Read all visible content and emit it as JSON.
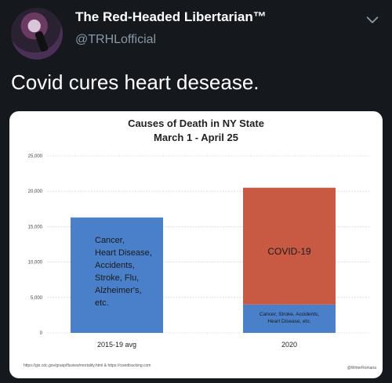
{
  "tweet": {
    "display_name": "The Red-Headed Libertarian™",
    "handle": "@TRHLofficial",
    "text": "Covid cures heart desease.",
    "menu_icon": "chevron-down-icon"
  },
  "chart_data": {
    "type": "bar",
    "title": "Causes of Death in NY State",
    "subtitle": "March 1 - April 25",
    "categories": [
      "2015-19 avg",
      "2020"
    ],
    "series": [
      {
        "name": "Cancer, Stroke, Accidents, Heart Disease, etc.",
        "values": [
          16300,
          4000
        ],
        "color": "#4a80c9"
      },
      {
        "name": "COVID-19",
        "values": [
          0,
          16500
        ],
        "color": "#c85a44"
      }
    ],
    "ylim": [
      0,
      25000
    ],
    "yticks": [
      "0",
      "5,000",
      "10,000",
      "15,000",
      "20,000",
      "25,000"
    ],
    "ytick_values": [
      0,
      5000,
      10000,
      15000,
      20000,
      25000
    ],
    "bar_text": {
      "avg_lines": [
        "Cancer,",
        "Heart Disease,",
        "Accidents,",
        "Stroke, Flu,",
        "Alzheimer's,",
        "etc."
      ],
      "covid": "COVID-19",
      "other_2020_lines": [
        "Cancer, Stroke, Accidents,",
        "Heart Disease, etc."
      ]
    },
    "grid": true,
    "source": "https://gis.cdc.gov/grasp/fluview/mortality.html & https://covidtracking.com",
    "credit": "@WriterRomana"
  }
}
